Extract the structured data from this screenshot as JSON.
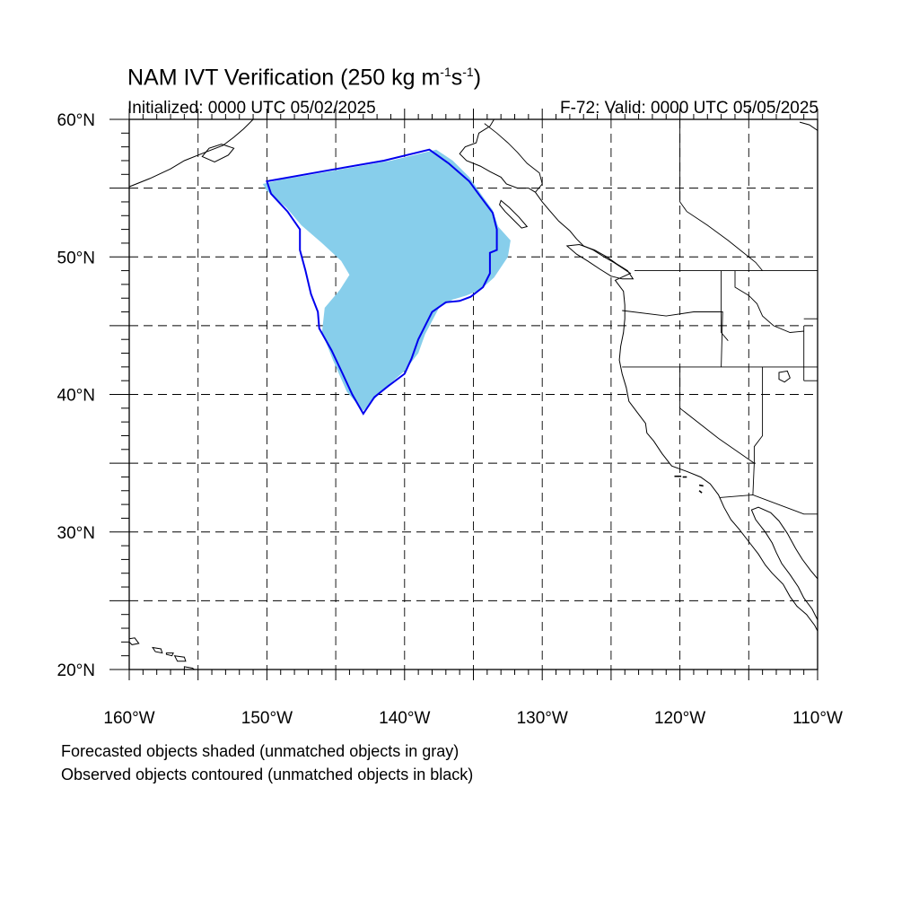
{
  "title": {
    "main": "NAM IVT Verification (250 kg m",
    "sup1": "-1",
    "mid": "s",
    "sup2": "-1",
    "end": ")"
  },
  "initialized": "Initialized: 0000 UTC 05/02/2025",
  "valid": "F-72: Valid: 0000 UTC 05/05/2025",
  "footnotes": [
    "Forecasted objects shaded (unmatched objects in gray)",
    "Observed objects contoured (unmatched objects in black)"
  ],
  "axes": {
    "lat_labels": [
      {
        "lat": 60,
        "text": "60°N"
      },
      {
        "lat": 50,
        "text": "50°N"
      },
      {
        "lat": 40,
        "text": "40°N"
      },
      {
        "lat": 30,
        "text": "30°N"
      },
      {
        "lat": 20,
        "text": "20°N"
      }
    ],
    "lon_labels": [
      {
        "lon": -160,
        "text": "160°W"
      },
      {
        "lon": -150,
        "text": "150°W"
      },
      {
        "lon": -140,
        "text": "140°W"
      },
      {
        "lon": -130,
        "text": "130°W"
      },
      {
        "lon": -120,
        "text": "120°W"
      },
      {
        "lon": -110,
        "text": "110°W"
      }
    ],
    "lon_range": [
      -160,
      -110
    ],
    "lat_range": [
      20,
      60
    ],
    "grid_lon": [
      -155,
      -150,
      -145,
      -140,
      -135,
      -130,
      -125,
      -120,
      -115
    ],
    "grid_lat": [
      25,
      30,
      35,
      40,
      45,
      50,
      55
    ]
  },
  "colors": {
    "forecast_fill": "#87ceeb",
    "observed_contour": "#0000ee",
    "coastline": "#000000",
    "grid": "#000000"
  },
  "objects": {
    "forecast_shaded": [
      [
        -150.3,
        55.3
      ],
      [
        -149,
        55.6
      ],
      [
        -145,
        56.3
      ],
      [
        -141,
        57
      ],
      [
        -137.7,
        57.8
      ],
      [
        -136.5,
        57
      ],
      [
        -135.3,
        55.8
      ],
      [
        -134.4,
        54.5
      ],
      [
        -133.6,
        53.4
      ],
      [
        -133.2,
        52.2
      ],
      [
        -132.3,
        51.2
      ],
      [
        -132.5,
        50
      ],
      [
        -133.5,
        48.5
      ],
      [
        -134.5,
        47.6
      ],
      [
        -135.5,
        47.2
      ],
      [
        -136.5,
        46.9
      ],
      [
        -137.5,
        46.3
      ],
      [
        -138.5,
        44.4
      ],
      [
        -139,
        43
      ],
      [
        -140,
        41.7
      ],
      [
        -141.5,
        40.4
      ],
      [
        -143,
        38.8
      ],
      [
        -144.2,
        40.2
      ],
      [
        -145.2,
        42.5
      ],
      [
        -146,
        44.5
      ],
      [
        -145.8,
        46.3
      ],
      [
        -144.7,
        47.6
      ],
      [
        -144,
        48.7
      ],
      [
        -144.6,
        49.7
      ],
      [
        -146,
        51
      ],
      [
        -147.5,
        52.3
      ],
      [
        -148.6,
        53.6
      ],
      [
        -150,
        54.8
      ]
    ],
    "observed_contour": [
      [
        -150,
        55.5
      ],
      [
        -145.5,
        56.3
      ],
      [
        -141.5,
        57
      ],
      [
        -138.2,
        57.8
      ],
      [
        -136.8,
        56.8
      ],
      [
        -135.3,
        55.5
      ],
      [
        -134.5,
        54.4
      ],
      [
        -133.6,
        53.2
      ],
      [
        -133.3,
        52
      ],
      [
        -133.3,
        50.5
      ],
      [
        -133.8,
        50.3
      ],
      [
        -133.8,
        48.8
      ],
      [
        -134.3,
        47.8
      ],
      [
        -135.2,
        47.1
      ],
      [
        -136,
        46.8
      ],
      [
        -137,
        46.7
      ],
      [
        -138,
        46
      ],
      [
        -139,
        44
      ],
      [
        -139.5,
        42.6
      ],
      [
        -140,
        41.5
      ],
      [
        -141.2,
        40.6
      ],
      [
        -142.2,
        39.8
      ],
      [
        -143,
        38.6
      ],
      [
        -143.8,
        40
      ],
      [
        -144.5,
        41.5
      ],
      [
        -145.3,
        43.2
      ],
      [
        -146.2,
        44.8
      ],
      [
        -146.3,
        46
      ],
      [
        -146.8,
        47.3
      ],
      [
        -147.2,
        49
      ],
      [
        -147.6,
        50.5
      ],
      [
        -147.6,
        52
      ],
      [
        -148.5,
        53.3
      ],
      [
        -149.7,
        54.6
      ]
    ]
  },
  "geography": {
    "coast_alaska": [
      [
        -133.5,
        60
      ],
      [
        -133.8,
        59.5
      ],
      [
        -134.6,
        59
      ],
      [
        -134.8,
        58.3
      ],
      [
        -135.6,
        58
      ],
      [
        -136,
        57.5
      ],
      [
        -135.5,
        57
      ],
      [
        -134.5,
        56.6
      ],
      [
        -133.8,
        56.2
      ],
      [
        -133,
        55.8
      ],
      [
        -132.6,
        55.3
      ],
      [
        -131.8,
        55
      ],
      [
        -131,
        55
      ],
      [
        -130.5,
        54.7
      ]
    ],
    "coast_west": [
      [
        -130.5,
        54.7
      ],
      [
        -130,
        54
      ],
      [
        -129.5,
        53.4
      ],
      [
        -128.8,
        52.6
      ],
      [
        -128,
        51.9
      ],
      [
        -127.5,
        51.3
      ],
      [
        -127,
        50.8
      ],
      [
        -126.3,
        50.5
      ],
      [
        -125.5,
        50
      ],
      [
        -124.8,
        49.6
      ],
      [
        -124.2,
        49.2
      ],
      [
        -123.6,
        48.8
      ],
      [
        -124.7,
        48.3
      ],
      [
        -124.1,
        47.5
      ],
      [
        -124,
        46.5
      ],
      [
        -124,
        45.5
      ],
      [
        -124.1,
        44.5
      ],
      [
        -124.3,
        43.5
      ],
      [
        -124.4,
        42.5
      ],
      [
        -124.2,
        41.5
      ],
      [
        -123.9,
        40.5
      ],
      [
        -123.7,
        39.5
      ],
      [
        -123.1,
        38.7
      ],
      [
        -122.5,
        37.9
      ],
      [
        -122.4,
        37.2
      ],
      [
        -121.9,
        36.6
      ],
      [
        -121.3,
        35.7
      ],
      [
        -120.6,
        34.8
      ],
      [
        -119.5,
        34.4
      ],
      [
        -118.5,
        34
      ],
      [
        -117.8,
        33.5
      ],
      [
        -117.2,
        32.7
      ],
      [
        -116.8,
        31.8
      ],
      [
        -116.3,
        30.9
      ],
      [
        -115.7,
        30.2
      ],
      [
        -115,
        29.3
      ],
      [
        -114.3,
        28.4
      ],
      [
        -113.8,
        27.6
      ],
      [
        -113.3,
        27
      ],
      [
        -112.5,
        26.2
      ],
      [
        -112,
        25.3
      ],
      [
        -111.5,
        24.6
      ],
      [
        -110.8,
        24
      ],
      [
        -110.2,
        23.2
      ],
      [
        -110,
        22.8
      ]
    ],
    "coast_gulf": [
      [
        -110,
        23.6
      ],
      [
        -110.4,
        24.4
      ],
      [
        -111,
        25.2
      ],
      [
        -111.4,
        26
      ],
      [
        -112,
        26.9
      ],
      [
        -112.6,
        27.7
      ],
      [
        -113,
        28.5
      ],
      [
        -113.3,
        29.2
      ],
      [
        -113.8,
        30
      ],
      [
        -114.5,
        30.9
      ],
      [
        -114.8,
        31.6
      ],
      [
        -114.3,
        31.8
      ],
      [
        -113.4,
        31.4
      ],
      [
        -112.8,
        30.8
      ],
      [
        -112.2,
        29.9
      ],
      [
        -111.6,
        28.8
      ],
      [
        -111.1,
        28
      ],
      [
        -110.5,
        27.2
      ],
      [
        -110,
        26.6
      ]
    ],
    "vancouver_island": [
      [
        -128.2,
        50.8
      ],
      [
        -127.5,
        50.2
      ],
      [
        -126.7,
        49.7
      ],
      [
        -125.8,
        49.1
      ],
      [
        -125,
        48.6
      ],
      [
        -124.2,
        48.4
      ],
      [
        -123.4,
        48.4
      ],
      [
        -123.8,
        49
      ],
      [
        -124.6,
        49.5
      ],
      [
        -125.3,
        50
      ],
      [
        -126.2,
        50.5
      ],
      [
        -127.3,
        50.9
      ],
      [
        -128.2,
        50.8
      ]
    ],
    "haida_gwaii": [
      [
        -133,
        54.1
      ],
      [
        -132.4,
        53.6
      ],
      [
        -131.7,
        52.9
      ],
      [
        -131.1,
        52.2
      ],
      [
        -131.5,
        52.1
      ],
      [
        -132.1,
        52.7
      ],
      [
        -132.7,
        53.3
      ],
      [
        -133.1,
        53.8
      ],
      [
        -133,
        54.1
      ]
    ],
    "alaska_pen": [
      [
        -160,
        55.1
      ],
      [
        -158.5,
        55.7
      ],
      [
        -157,
        56.4
      ],
      [
        -156,
        57
      ],
      [
        -154.5,
        57.6
      ],
      [
        -153.2,
        58.1
      ],
      [
        -152.4,
        58.7
      ],
      [
        -151.7,
        59.3
      ],
      [
        -151.3,
        59.7
      ],
      [
        -151,
        60
      ]
    ],
    "kodiak": [
      [
        -154.7,
        57.3
      ],
      [
        -153.8,
        56.9
      ],
      [
        -152.8,
        57.4
      ],
      [
        -152.4,
        57.9
      ],
      [
        -153.3,
        58.2
      ],
      [
        -154.2,
        57.9
      ],
      [
        -154.7,
        57.3
      ]
    ],
    "alaska_east": [
      [
        -110,
        59.2
      ],
      [
        -110.6,
        59.6
      ],
      [
        -111.3,
        59.8
      ]
    ],
    "borders": [
      [
        [
          -123.3,
          49
        ],
        [
          -110,
          49
        ]
      ],
      [
        [
          -124.2,
          42
        ],
        [
          -117,
          42
        ],
        [
          -110,
          42
        ]
      ],
      [
        [
          -124.2,
          46.1
        ],
        [
          -121,
          45.7
        ],
        [
          -119,
          46
        ],
        [
          -116.9,
          46
        ],
        [
          -117,
          42
        ]
      ],
      [
        [
          -117,
          49
        ],
        [
          -117,
          44.5
        ],
        [
          -116.5,
          43.9
        ]
      ],
      [
        [
          -116,
          49
        ],
        [
          -116,
          47.8
        ],
        [
          -115,
          47.2
        ],
        [
          -114.4,
          46.6
        ],
        [
          -114,
          45.7
        ],
        [
          -113.2,
          45
        ],
        [
          -112,
          44.5
        ],
        [
          -111,
          44.6
        ]
      ],
      [
        [
          -111,
          45.5
        ],
        [
          -110,
          45.5
        ]
      ],
      [
        [
          -120,
          42
        ],
        [
          -120,
          39
        ],
        [
          -117.2,
          36.8
        ],
        [
          -114.6,
          35
        ]
      ],
      [
        [
          -114,
          42
        ],
        [
          -114,
          37
        ],
        [
          -114.6,
          36.2
        ],
        [
          -114.6,
          35
        ]
      ],
      [
        [
          -117.1,
          32.5
        ],
        [
          -114.7,
          32.7
        ],
        [
          -111,
          31.3
        ],
        [
          -110,
          31.3
        ]
      ],
      [
        [
          -114.7,
          32.7
        ],
        [
          -114.6,
          35
        ]
      ],
      [
        [
          -111,
          41
        ],
        [
          -110,
          41
        ]
      ],
      [
        [
          -111,
          45
        ],
        [
          -111,
          41
        ]
      ],
      [
        [
          -120,
          60
        ],
        [
          -120,
          54
        ],
        [
          -119.5,
          53.3
        ],
        [
          -118,
          52.3
        ],
        [
          -116.5,
          51.2
        ],
        [
          -115.5,
          50.4
        ],
        [
          -114.5,
          49.6
        ],
        [
          -114,
          49
        ]
      ],
      [
        [
          -134.2,
          59.7
        ],
        [
          -133.3,
          59
        ],
        [
          -132.5,
          58.3
        ],
        [
          -131.8,
          57.6
        ],
        [
          -131.1,
          56.8
        ],
        [
          -130.2,
          56.1
        ],
        [
          -130,
          55.3
        ],
        [
          -130.5,
          54.7
        ]
      ]
    ],
    "great_salt_lake": [
      [
        -112.8,
        41.6
      ],
      [
        -112.2,
        41.7
      ],
      [
        -112,
        41.2
      ],
      [
        -112.4,
        40.9
      ],
      [
        -112.8,
        41.1
      ],
      [
        -112.8,
        41.6
      ]
    ],
    "hawaii": [
      [
        [
          -160.2,
          22.2
        ],
        [
          -159.6,
          22.3
        ],
        [
          -159.3,
          21.9
        ],
        [
          -159.8,
          21.8
        ],
        [
          -160.2,
          22.2
        ]
      ],
      [
        [
          -158.3,
          21.6
        ],
        [
          -157.7,
          21.5
        ],
        [
          -157.6,
          21.2
        ],
        [
          -158.1,
          21.3
        ],
        [
          -158.3,
          21.6
        ]
      ],
      [
        [
          -157.3,
          21.2
        ],
        [
          -156.8,
          21.2
        ],
        [
          -156.9,
          21.0
        ],
        [
          -157.3,
          21.1
        ]
      ],
      [
        [
          -156.7,
          21
        ],
        [
          -156,
          20.9
        ],
        [
          -155.9,
          20.6
        ],
        [
          -156.5,
          20.6
        ],
        [
          -156.7,
          21
        ]
      ],
      [
        [
          -156,
          20.2
        ],
        [
          -155.4,
          20.1
        ],
        [
          -154.8,
          19.6
        ],
        [
          -155,
          19.0
        ],
        [
          -155.7,
          18.9
        ],
        [
          -156,
          19.6
        ],
        [
          -156,
          20.2
        ]
      ]
    ],
    "channel_islands": [
      [
        [
          -120.4,
          34.05
        ],
        [
          -119.9,
          34.05
        ]
      ],
      [
        [
          -119.8,
          34.0
        ],
        [
          -119.5,
          34.0
        ]
      ],
      [
        [
          -118.6,
          33.4
        ],
        [
          -118.3,
          33.35
        ]
      ],
      [
        [
          -118.6,
          33.0
        ],
        [
          -118.4,
          32.85
        ]
      ]
    ]
  }
}
